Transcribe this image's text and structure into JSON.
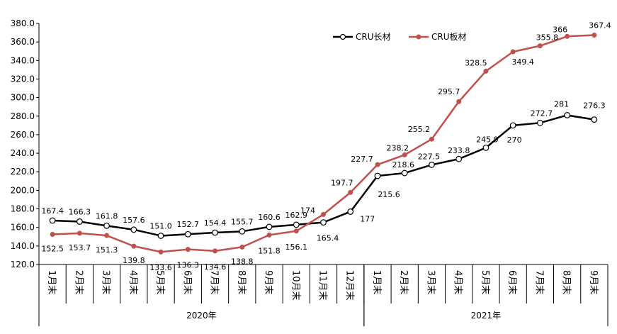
{
  "chart_data": {
    "type": "line",
    "title": "",
    "xlabel": "",
    "ylabel": "",
    "ylim": [
      120,
      380
    ],
    "ystep": 20,
    "ytick_labels": [
      "120.0",
      "140.0",
      "160.0",
      "180.0",
      "200.0",
      "220.0",
      "240.0",
      "260.0",
      "280.0",
      "300.0",
      "320.0",
      "340.0",
      "360.0",
      "380.0"
    ],
    "categories": [
      "1月末",
      "2月末",
      "3月末",
      "4月末",
      "5月末",
      "6月末",
      "7月末",
      "8月末",
      "9月末",
      "10月末",
      "11月末",
      "12月末",
      "1月末",
      "2月末",
      "3月末",
      "4月末",
      "5月末",
      "6月末",
      "7月末",
      "8月末",
      "9月末"
    ],
    "groups": [
      {
        "label": "2020年",
        "start": 0,
        "end": 11
      },
      {
        "label": "2021年",
        "start": 12,
        "end": 20
      }
    ],
    "legend_position": "top-right",
    "series": [
      {
        "name": "CRU长材",
        "color": "#000000",
        "marker": "open-circle",
        "values": [
          167.4,
          166.3,
          161.8,
          157.6,
          151.0,
          152.7,
          154.4,
          155.7,
          160.6,
          162.9,
          165.4,
          177,
          215.6,
          218.6,
          227.5,
          233.8,
          245.9,
          270,
          272.7,
          281,
          276.3
        ],
        "labels": [
          "167.4",
          "166.3",
          "161.8",
          "157.6",
          "151.0",
          "152.7",
          "154.4",
          "155.7",
          "160.6",
          "162.9",
          "165.4",
          "177",
          "215.6",
          "218.6",
          "227.5",
          "233.8",
          "245.9",
          "270",
          "272.7",
          "281",
          "276.3"
        ]
      },
      {
        "name": "CRU板材",
        "color": "#c0504d",
        "marker": "filled-circle",
        "values": [
          152.5,
          153.7,
          151.3,
          139.8,
          133.6,
          136.3,
          134.6,
          138.8,
          151.8,
          156.1,
          174,
          197.7,
          227.7,
          238.2,
          255.2,
          295.7,
          328.5,
          349.4,
          355.8,
          366,
          367.4
        ],
        "labels": [
          "152.5",
          "153.7",
          "151.3",
          "139.8",
          "133.6",
          "136.3",
          "134.6",
          "138.8",
          "151.8",
          "156.1",
          "174",
          "197.7",
          "227.7",
          "238.2",
          "255.2",
          "295.7",
          "328.5",
          "349.4",
          "355.8",
          "366",
          "367.4"
        ]
      }
    ]
  }
}
